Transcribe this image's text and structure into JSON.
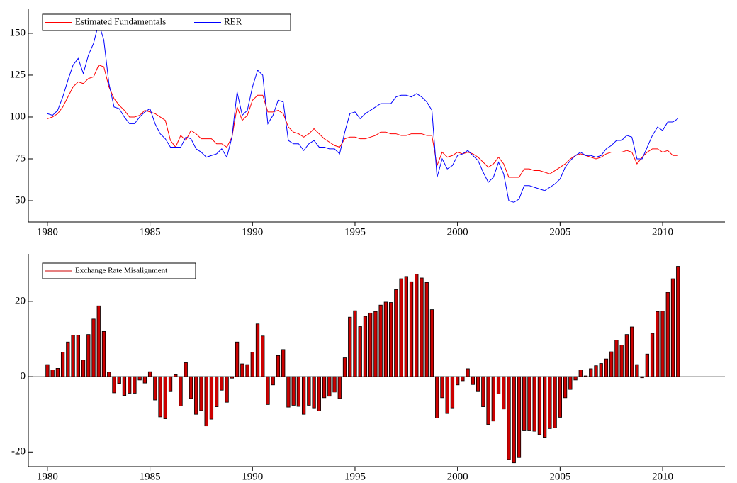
{
  "chart_data": [
    {
      "type": "line",
      "x": [
        1980,
        1980.25,
        1980.5,
        1980.75,
        1981,
        1981.25,
        1981.5,
        1981.75,
        1982,
        1982.25,
        1982.5,
        1982.75,
        1983,
        1983.25,
        1983.5,
        1983.75,
        1984,
        1984.25,
        1984.5,
        1984.75,
        1985,
        1985.25,
        1985.5,
        1985.75,
        1986,
        1986.25,
        1986.5,
        1986.75,
        1987,
        1987.25,
        1987.5,
        1987.75,
        1988,
        1988.25,
        1988.5,
        1988.75,
        1989,
        1989.25,
        1989.5,
        1989.75,
        1990,
        1990.25,
        1990.5,
        1990.75,
        1991,
        1991.25,
        1991.5,
        1991.75,
        1992,
        1992.25,
        1992.5,
        1992.75,
        1993,
        1993.25,
        1993.5,
        1993.75,
        1994,
        1994.25,
        1994.5,
        1994.75,
        1995,
        1995.25,
        1995.5,
        1995.75,
        1996,
        1996.25,
        1996.5,
        1996.75,
        1997,
        1997.25,
        1997.5,
        1997.75,
        1998,
        1998.25,
        1998.5,
        1998.75,
        1999,
        1999.25,
        1999.5,
        1999.75,
        2000,
        2000.25,
        2000.5,
        2000.75,
        2001,
        2001.25,
        2001.5,
        2001.75,
        2002,
        2002.25,
        2002.5,
        2002.75,
        2003,
        2003.25,
        2003.5,
        2003.75,
        2004,
        2004.25,
        2004.5,
        2004.75,
        2005,
        2005.25,
        2005.5,
        2005.75,
        2006,
        2006.25,
        2006.5,
        2006.75,
        2007,
        2007.25,
        2007.5,
        2007.75,
        2008,
        2008.25,
        2008.5,
        2008.75,
        2009,
        2009.25,
        2009.5,
        2009.75,
        2010,
        2010.25,
        2010.5,
        2010.75
      ],
      "series": [
        {
          "name": "Estimated Fundamentals",
          "color": "#ff0000",
          "values": [
            99,
            100,
            102,
            106,
            112,
            118,
            121,
            120,
            123,
            124,
            131,
            130,
            118,
            111,
            107,
            104,
            100,
            100,
            101,
            104,
            103,
            102,
            100,
            98,
            86,
            82,
            89,
            86,
            92,
            90,
            87,
            87,
            87,
            84,
            84,
            82,
            88,
            106,
            98,
            101,
            110,
            113,
            113,
            103,
            103,
            104,
            102,
            94,
            91,
            90,
            88,
            90,
            93,
            90,
            87,
            85,
            83,
            82,
            87,
            88,
            88,
            87,
            87,
            88,
            89,
            91,
            91,
            90,
            90,
            89,
            89,
            90,
            90,
            90,
            89,
            89,
            71,
            79,
            76,
            77,
            79,
            78,
            79,
            78,
            76,
            73,
            70,
            72,
            76,
            72,
            64,
            64,
            64,
            69,
            69,
            68,
            68,
            67,
            66,
            68,
            70,
            72,
            75,
            77,
            78,
            77,
            76,
            75,
            76,
            78,
            79,
            79,
            79,
            80,
            79,
            72,
            76,
            79,
            81,
            81,
            79,
            80,
            77,
            77
          ]
        },
        {
          "name": "RER",
          "color": "#0000ff",
          "values": [
            102,
            101,
            104,
            112,
            122,
            131,
            135,
            126,
            137,
            144,
            156,
            146,
            120,
            106,
            105,
            100,
            96,
            96,
            100,
            103,
            105,
            96,
            90,
            87,
            82,
            82,
            82,
            88,
            87,
            81,
            79,
            76,
            77,
            78,
            81,
            76,
            88,
            115,
            101,
            104,
            118,
            128,
            125,
            96,
            101,
            110,
            109,
            86,
            84,
            84,
            80,
            84,
            86,
            82,
            82,
            81,
            81,
            78,
            91,
            102,
            103,
            99,
            102,
            104,
            106,
            108,
            108,
            108,
            112,
            113,
            113,
            112,
            114,
            112,
            109,
            104,
            64,
            75,
            69,
            71,
            77,
            78,
            80,
            77,
            74,
            67,
            61,
            64,
            73,
            66,
            50,
            49,
            51,
            59,
            59,
            58,
            57,
            56,
            58,
            60,
            63,
            70,
            74,
            77,
            79,
            77,
            77,
            76,
            77,
            81,
            83,
            86,
            86,
            89,
            88,
            75,
            75,
            82,
            89,
            94,
            92,
            97,
            97,
            99
          ]
        }
      ],
      "xlim": [
        1979.07,
        2013.04
      ],
      "xticks": [
        1980,
        1985,
        1990,
        1995,
        2000,
        2005,
        2010
      ],
      "ylim": [
        37.3,
        164.8
      ],
      "yticks": [
        50,
        75,
        100,
        125,
        150
      ],
      "legend": "upper left"
    },
    {
      "type": "bar",
      "x": [
        1980,
        1980.25,
        1980.5,
        1980.75,
        1981,
        1981.25,
        1981.5,
        1981.75,
        1982,
        1982.25,
        1982.5,
        1982.75,
        1983,
        1983.25,
        1983.5,
        1983.75,
        1984,
        1984.25,
        1984.5,
        1984.75,
        1985,
        1985.25,
        1985.5,
        1985.75,
        1986,
        1986.25,
        1986.5,
        1986.75,
        1987,
        1987.25,
        1987.5,
        1987.75,
        1988,
        1988.25,
        1988.5,
        1988.75,
        1989,
        1989.25,
        1989.5,
        1989.75,
        1990,
        1990.25,
        1990.5,
        1990.75,
        1991,
        1991.25,
        1991.5,
        1991.75,
        1992,
        1992.25,
        1992.5,
        1992.75,
        1993,
        1993.25,
        1993.5,
        1993.75,
        1994,
        1994.25,
        1994.5,
        1994.75,
        1995,
        1995.25,
        1995.5,
        1995.75,
        1996,
        1996.25,
        1996.5,
        1996.75,
        1997,
        1997.25,
        1997.5,
        1997.75,
        1998,
        1998.25,
        1998.5,
        1998.75,
        1999,
        1999.25,
        1999.5,
        1999.75,
        2000,
        2000.25,
        2000.5,
        2000.75,
        2001,
        2001.25,
        2001.5,
        2001.75,
        2002,
        2002.25,
        2002.5,
        2002.75,
        2003,
        2003.25,
        2003.5,
        2003.75,
        2004,
        2004.25,
        2004.5,
        2004.75,
        2005,
        2005.25,
        2005.5,
        2005.75,
        2006,
        2006.25,
        2006.5,
        2006.75,
        2007,
        2007.25,
        2007.5,
        2007.75,
        2008,
        2008.25,
        2008.5,
        2008.75,
        2009,
        2009.25,
        2009.5,
        2009.75,
        2010,
        2010.25,
        2010.5,
        2010.75
      ],
      "series": [
        {
          "name": "Exchange Rate Misalignment",
          "color": "#cc0000",
          "values": [
            3.2,
            1.8,
            2.2,
            6.5,
            9.2,
            11,
            11,
            4.4,
            11.2,
            15.3,
            18.8,
            12,
            1.2,
            -4.3,
            -1.8,
            -5,
            -4.4,
            -4.4,
            -0.9,
            -1.7,
            1.3,
            -6.2,
            -10.7,
            -11.2,
            -3.8,
            0.5,
            -7.8,
            3.7,
            -5.8,
            -10,
            -9,
            -13.1,
            -11.3,
            -8,
            -3.6,
            -6.8,
            -0.4,
            9.2,
            3.4,
            3.2,
            6.5,
            14,
            10.8,
            -7.4,
            -2.2,
            5.6,
            7.2,
            -8.1,
            -7.6,
            -7.9,
            -10,
            -7.6,
            -8.3,
            -9.1,
            -5.6,
            -5.2,
            -4.1,
            -5.8,
            5,
            15.8,
            17.5,
            13.3,
            16,
            16.9,
            17.3,
            19,
            19.8,
            19.7,
            23.1,
            26,
            26.6,
            25.2,
            27.2,
            26.2,
            25,
            17.8,
            -11,
            -5.6,
            -9.8,
            -8.3,
            -2.2,
            -1.1,
            2.1,
            -2.1,
            -3.8,
            -8,
            -12.7,
            -11.8,
            -4.6,
            -8.6,
            -22,
            -22.9,
            -21.5,
            -14.2,
            -14.2,
            -14.5,
            -15.4,
            -16.1,
            -13.8,
            -13.6,
            -10.8,
            -5.6,
            -3.4,
            -0.9,
            1.8,
            0.2,
            2.1,
            2.9,
            3.5,
            4.7,
            6.6,
            9.7,
            8.4,
            11.2,
            13.2,
            3.2,
            -0.3,
            6,
            11.5,
            17.3,
            17.4,
            22.4,
            26,
            29.3
          ]
        }
      ],
      "xlim": [
        1979.07,
        2013.04
      ],
      "xticks": [
        1980,
        1985,
        1990,
        1995,
        2000,
        2005,
        2010
      ],
      "ylim": [
        -23.9,
        32.6
      ],
      "yticks": [
        -20,
        0,
        20
      ],
      "legend": "upper left"
    }
  ]
}
